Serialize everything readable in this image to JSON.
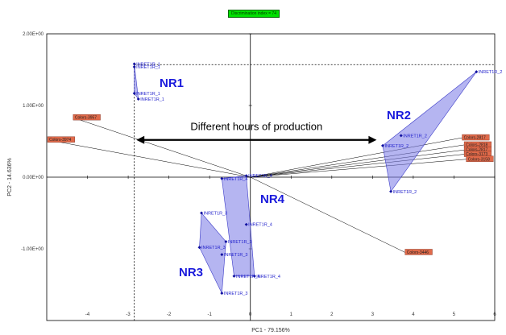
{
  "chart_data": {
    "type": "scatter",
    "title": "Discrimination index = 74",
    "xlabel": "PC1 - 79.156%",
    "ylabel": "PC2 - 14.636%",
    "xlim": [
      -5,
      6
    ],
    "ylim": [
      -2,
      2
    ],
    "x_ticks": [
      "-4",
      "-3",
      "-2",
      "-1",
      "0",
      "1",
      "2",
      "3",
      "4",
      "5",
      "6"
    ],
    "y_ticks": [
      "2.00E+00",
      "1.00E+00",
      "0.00E+00",
      "-1.00E+00"
    ],
    "reference_lines": {
      "x": -2.85,
      "y": 1.57
    },
    "groups": [
      {
        "name": "NR1",
        "points": [
          {
            "label": "INRET1R_1",
            "x": -2.85,
            "y": 1.58
          },
          {
            "label": "INRET1R_1",
            "x": -2.85,
            "y": 1.54
          },
          {
            "label": "INRET1R_1",
            "x": -2.85,
            "y": 1.17
          },
          {
            "label": "INRET1R_1",
            "x": -2.75,
            "y": 1.09
          }
        ]
      },
      {
        "name": "NR2",
        "points": [
          {
            "label": "INRET1R_2",
            "x": 5.55,
            "y": 1.47
          },
          {
            "label": "INRET1R_2",
            "x": 3.7,
            "y": 0.58
          },
          {
            "label": "INRET1R_2",
            "x": 3.25,
            "y": 0.44
          },
          {
            "label": "INRET1R_2",
            "x": 3.45,
            "y": -0.2
          }
        ]
      },
      {
        "name": "NR3",
        "points": [
          {
            "label": "INRET1R_3",
            "x": -1.2,
            "y": -0.5
          },
          {
            "label": "INRET1R_3",
            "x": -0.6,
            "y": -0.9
          },
          {
            "label": "INRET1R_3",
            "x": -1.25,
            "y": -0.98
          },
          {
            "label": "INRET1R_3",
            "x": -0.7,
            "y": -1.08
          },
          {
            "label": "INRET1R_3",
            "x": -0.7,
            "y": -1.62
          }
        ]
      },
      {
        "name": "NR4",
        "points": [
          {
            "label": "INRET1R_4",
            "x": -0.1,
            "y": 0.02
          },
          {
            "label": "INRET1R_4",
            "x": -0.7,
            "y": -0.02
          },
          {
            "label": "INRET1R_4",
            "x": -0.1,
            "y": -0.66
          },
          {
            "label": "INRET1R_4",
            "x": -0.4,
            "y": -1.38
          },
          {
            "label": "INRET1R_4",
            "x": 0.1,
            "y": -1.38
          }
        ]
      }
    ],
    "variables": [
      {
        "label": "Colors-3957",
        "x": -4.35,
        "y": 0.83
      },
      {
        "label": "Colors-3974",
        "x": -4.98,
        "y": 0.52
      },
      {
        "label": "Colors-2817",
        "x": 5.2,
        "y": 0.55
      },
      {
        "label": "Colors-2818",
        "x": 5.25,
        "y": 0.45
      },
      {
        "label": "Colors-2817",
        "x": 5.25,
        "y": 0.38
      },
      {
        "label": "Colors-3173",
        "x": 5.25,
        "y": 0.32
      },
      {
        "label": "Colors-3158",
        "x": 5.3,
        "y": 0.25
      },
      {
        "label": "Colors-3446",
        "x": 3.8,
        "y": -1.05
      }
    ],
    "annotation": "Different hours of production",
    "arrow": {
      "from": -2.8,
      "to": 3.1,
      "y": 0.52
    },
    "colors": {
      "group": "#1a1adc",
      "hull_fill": "#7878e6",
      "variable_box": "#e06a4a",
      "badge": "#00e000"
    }
  }
}
